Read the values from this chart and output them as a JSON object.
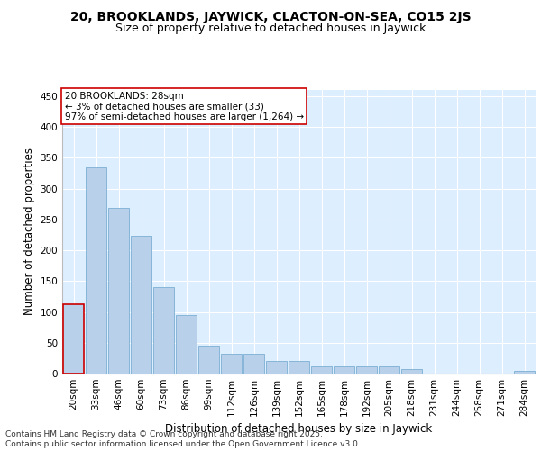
{
  "title_line1": "20, BROOKLANDS, JAYWICK, CLACTON-ON-SEA, CO15 2JS",
  "title_line2": "Size of property relative to detached houses in Jaywick",
  "xlabel": "Distribution of detached houses by size in Jaywick",
  "ylabel": "Number of detached properties",
  "categories": [
    "20sqm",
    "33sqm",
    "46sqm",
    "60sqm",
    "73sqm",
    "86sqm",
    "99sqm",
    "112sqm",
    "126sqm",
    "139sqm",
    "152sqm",
    "165sqm",
    "178sqm",
    "192sqm",
    "205sqm",
    "218sqm",
    "231sqm",
    "244sqm",
    "258sqm",
    "271sqm",
    "284sqm"
  ],
  "values": [
    112,
    335,
    268,
    223,
    140,
    95,
    45,
    32,
    32,
    20,
    20,
    12,
    11,
    11,
    11,
    8,
    0,
    0,
    0,
    0,
    5
  ],
  "bar_color": "#b8d0ea",
  "bar_edge_color": "#7aafd4",
  "highlight_bar_edge_color": "#cc0000",
  "annotation_text": "20 BROOKLANDS: 28sqm\n← 3% of detached houses are smaller (33)\n97% of semi-detached houses are larger (1,264) →",
  "annotation_box_edge_color": "#cc0000",
  "ylim": [
    0,
    460
  ],
  "yticks": [
    0,
    50,
    100,
    150,
    200,
    250,
    300,
    350,
    400,
    450
  ],
  "plot_bg_color": "#ddeeff",
  "footer_text": "Contains HM Land Registry data © Crown copyright and database right 2025.\nContains public sector information licensed under the Open Government Licence v3.0.",
  "title_fontsize": 10,
  "subtitle_fontsize": 9,
  "axis_label_fontsize": 8.5,
  "tick_fontsize": 7.5,
  "annotation_fontsize": 7.5,
  "footer_fontsize": 6.5
}
